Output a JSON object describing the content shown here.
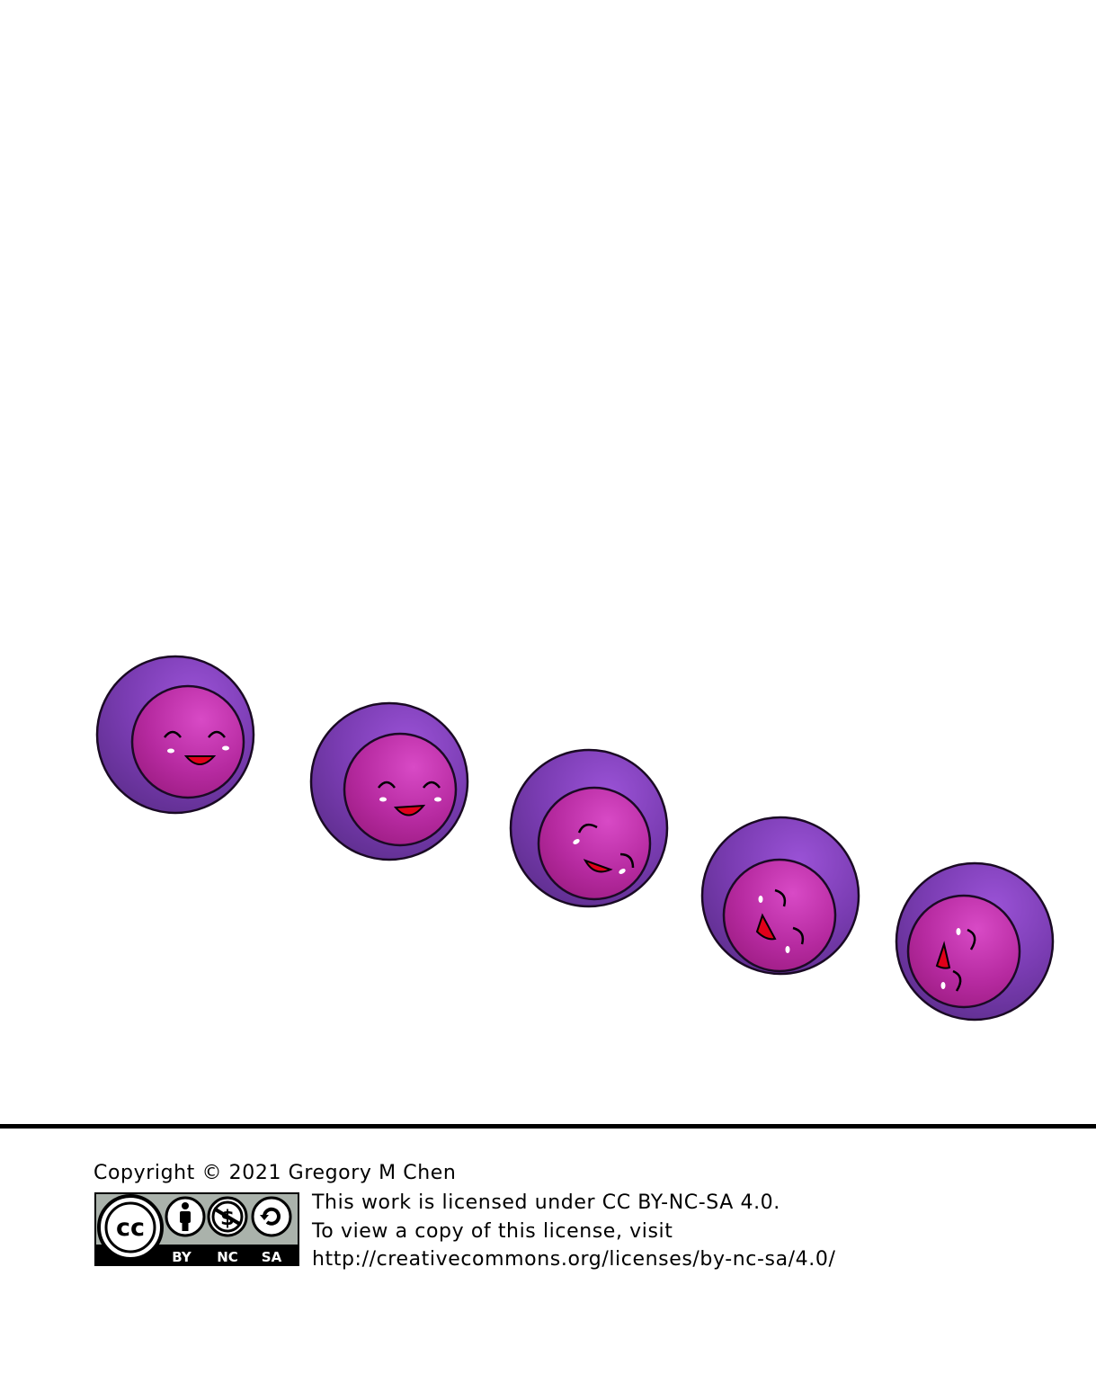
{
  "illustration": {
    "colors": {
      "outer_light": "#9a52d6",
      "outer_dark": "#5e2e8e",
      "inner_light": "#d84ac6",
      "inner_dark": "#9c1c82",
      "outline": "#1a0a24",
      "mouth": "#e0001a"
    },
    "characters": [
      {
        "name": "face-1"
      },
      {
        "name": "face-2"
      },
      {
        "name": "face-3"
      },
      {
        "name": "face-4"
      },
      {
        "name": "face-5"
      }
    ]
  },
  "footer": {
    "copyright": "Copyright © 2021 Gregory M Chen",
    "license_lines": [
      "This work is licensed under CC BY-NC-SA 4.0.",
      "To view a copy of this license, visit",
      "http://creativecommons.org/licenses/by-nc-sa/4.0/"
    ],
    "badge": {
      "cc": "cc",
      "by": "BY",
      "nc": "NC",
      "sa": "SA"
    }
  }
}
